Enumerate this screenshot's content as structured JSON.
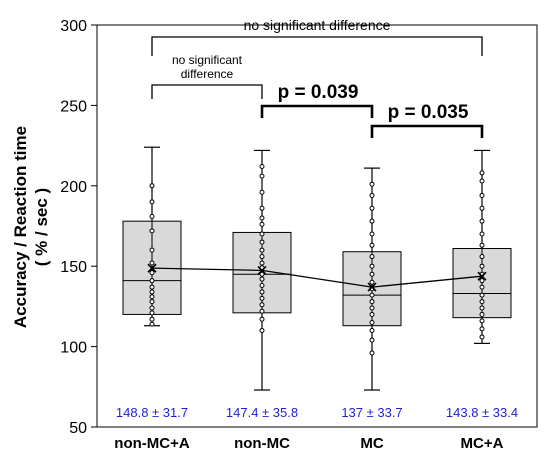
{
  "chart_data": {
    "type": "box",
    "ylabel_line1": "Accuracy / Reaction time",
    "ylabel_line2": "( % / sec )",
    "ylim": [
      50,
      300
    ],
    "yticks": [
      "50",
      "100",
      "150",
      "200",
      "250",
      "300"
    ],
    "categories": [
      "non-MC+A",
      "non-MC",
      "MC",
      "MC+A"
    ],
    "boxes": [
      {
        "whisker_low": 113,
        "q1": 120,
        "median": 141,
        "q3": 178,
        "whisker_high": 224,
        "mean": 148.8,
        "points": [
          114,
          117,
          121,
          124,
          128,
          131,
          134,
          137,
          141,
          146,
          152,
          160,
          172,
          181,
          190,
          200
        ]
      },
      {
        "whisker_low": 73,
        "q1": 121,
        "median": 145,
        "q3": 171,
        "whisker_high": 222,
        "mean": 147.4,
        "points": [
          110,
          117,
          122,
          126,
          130,
          134,
          138,
          142,
          145,
          149,
          152,
          156,
          160,
          165,
          170,
          176,
          180,
          186,
          196,
          206,
          212
        ]
      },
      {
        "whisker_low": 73,
        "q1": 113,
        "median": 132,
        "q3": 159,
        "whisker_high": 211,
        "mean": 137,
        "points": [
          96,
          104,
          110,
          115,
          120,
          124,
          128,
          132,
          136,
          140,
          145,
          150,
          156,
          163,
          170,
          178,
          186,
          194,
          201
        ]
      },
      {
        "whisker_low": 102,
        "q1": 118,
        "median": 133,
        "q3": 161,
        "whisker_high": 222,
        "mean": 143.8,
        "points": [
          106,
          111,
          116,
          120,
          124,
          128,
          132,
          137,
          141,
          145,
          150,
          156,
          163,
          170,
          178,
          186,
          194,
          203,
          208
        ]
      }
    ],
    "mean_labels": [
      "148.8 ± 31.7",
      "147.4 ± 35.8",
      "137 ± 33.7",
      "143.8 ± 33.4"
    ],
    "annotations": {
      "top_text": "no significant difference",
      "small_text_line1": "no significant",
      "small_text_line2": "difference",
      "p1": "p = 0.039",
      "p2": "p = 0.035"
    },
    "grid": false
  }
}
